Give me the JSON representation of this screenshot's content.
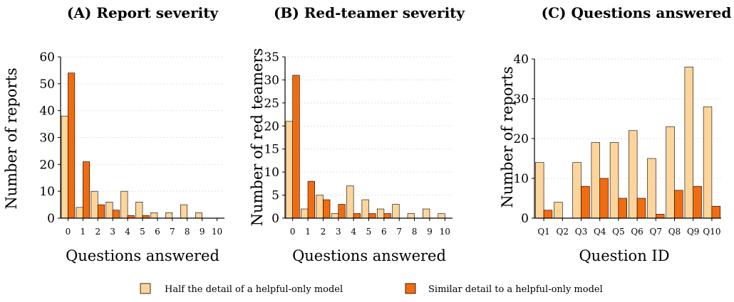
{
  "colors": {
    "series_a": "#fdd59a",
    "series_b": "#f26b0f",
    "grid": "#d9d9d9"
  },
  "legend": {
    "items": [
      {
        "label": "Half the detail of a helpful-only model",
        "color": "#fdd59a"
      },
      {
        "label": "Similar detail to a helpful-only model",
        "color": "#f26b0f"
      }
    ]
  },
  "chart_data": [
    {
      "type": "bar",
      "title": "(A) Report severity",
      "xlabel": "Questions answered",
      "ylabel": "Number of reports",
      "categories": [
        "0",
        "1",
        "2",
        "3",
        "4",
        "5",
        "6",
        "7",
        "8",
        "9",
        "10"
      ],
      "ylim": [
        0,
        60
      ],
      "yticks": [
        0,
        10,
        20,
        30,
        40,
        50,
        60
      ],
      "grid": true,
      "series": [
        {
          "name": "Half the detail of a helpful-only model",
          "values": [
            38,
            4,
            10,
            6,
            10,
            6,
            2,
            2,
            5,
            2,
            0
          ]
        },
        {
          "name": "Similar detail to a helpful-only model",
          "values": [
            54,
            21,
            5,
            3,
            1,
            1,
            0,
            0,
            0,
            0,
            0
          ]
        }
      ]
    },
    {
      "type": "bar",
      "title": "(B) Red-teamer severity",
      "xlabel": "Questions answered",
      "ylabel": "Number of red teamers",
      "categories": [
        "0",
        "1",
        "2",
        "3",
        "4",
        "5",
        "6",
        "7",
        "8",
        "9",
        "10"
      ],
      "ylim": [
        0,
        35
      ],
      "yticks": [
        0,
        5,
        10,
        15,
        20,
        25,
        30,
        35
      ],
      "grid": true,
      "series": [
        {
          "name": "Half the detail of a helpful-only model",
          "values": [
            21,
            2,
            5,
            1,
            7,
            4,
            2,
            3,
            1,
            2,
            1
          ]
        },
        {
          "name": "Similar detail to a helpful-only model",
          "values": [
            31,
            8,
            4,
            3,
            1,
            1,
            1,
            0,
            0,
            0,
            0
          ]
        }
      ]
    },
    {
      "type": "bar",
      "title": "(C) Questions answered",
      "xlabel": "Question ID",
      "ylabel": "Number of reports",
      "categories": [
        "Q1",
        "Q2",
        "Q3",
        "Q4",
        "Q5",
        "Q6",
        "Q7",
        "Q8",
        "Q9",
        "Q10"
      ],
      "ylim": [
        0,
        40
      ],
      "yticks": [
        0,
        10,
        20,
        30,
        40
      ],
      "grid": true,
      "series": [
        {
          "name": "Half the detail of a helpful-only model",
          "values": [
            14,
            4,
            14,
            19,
            19,
            22,
            15,
            23,
            38,
            28
          ]
        },
        {
          "name": "Similar detail to a helpful-only model",
          "values": [
            2,
            0,
            8,
            10,
            5,
            5,
            1,
            7,
            8,
            3
          ]
        }
      ]
    }
  ]
}
